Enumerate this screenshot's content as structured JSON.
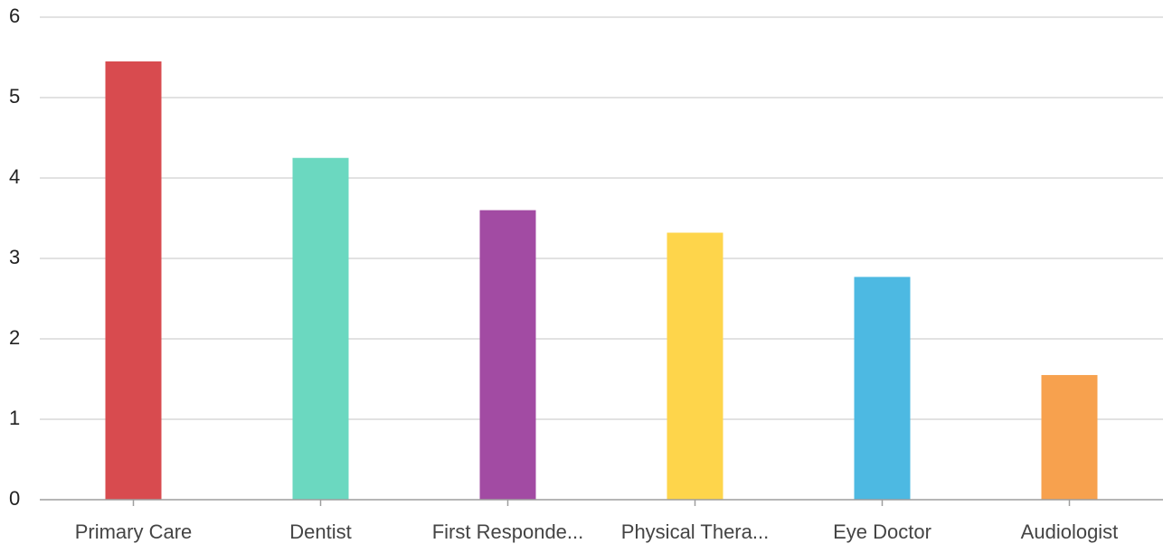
{
  "chart_data": {
    "type": "bar",
    "title": "",
    "xlabel": "",
    "ylabel": "",
    "categories": [
      "Primary Care",
      "Dentist",
      "First Responde...",
      "Physical Thera...",
      "Eye Doctor",
      "Audiologist"
    ],
    "values": [
      5.45,
      4.25,
      3.6,
      3.32,
      2.77,
      1.55
    ],
    "colors": [
      "#d84b4f",
      "#6bd8c0",
      "#a24ba3",
      "#fed54b",
      "#4db9e2",
      "#f7a14e"
    ],
    "ylim": [
      0,
      6
    ],
    "yticks": [
      0,
      1,
      2,
      3,
      4,
      5,
      6
    ],
    "grid": true,
    "legend": "none"
  }
}
